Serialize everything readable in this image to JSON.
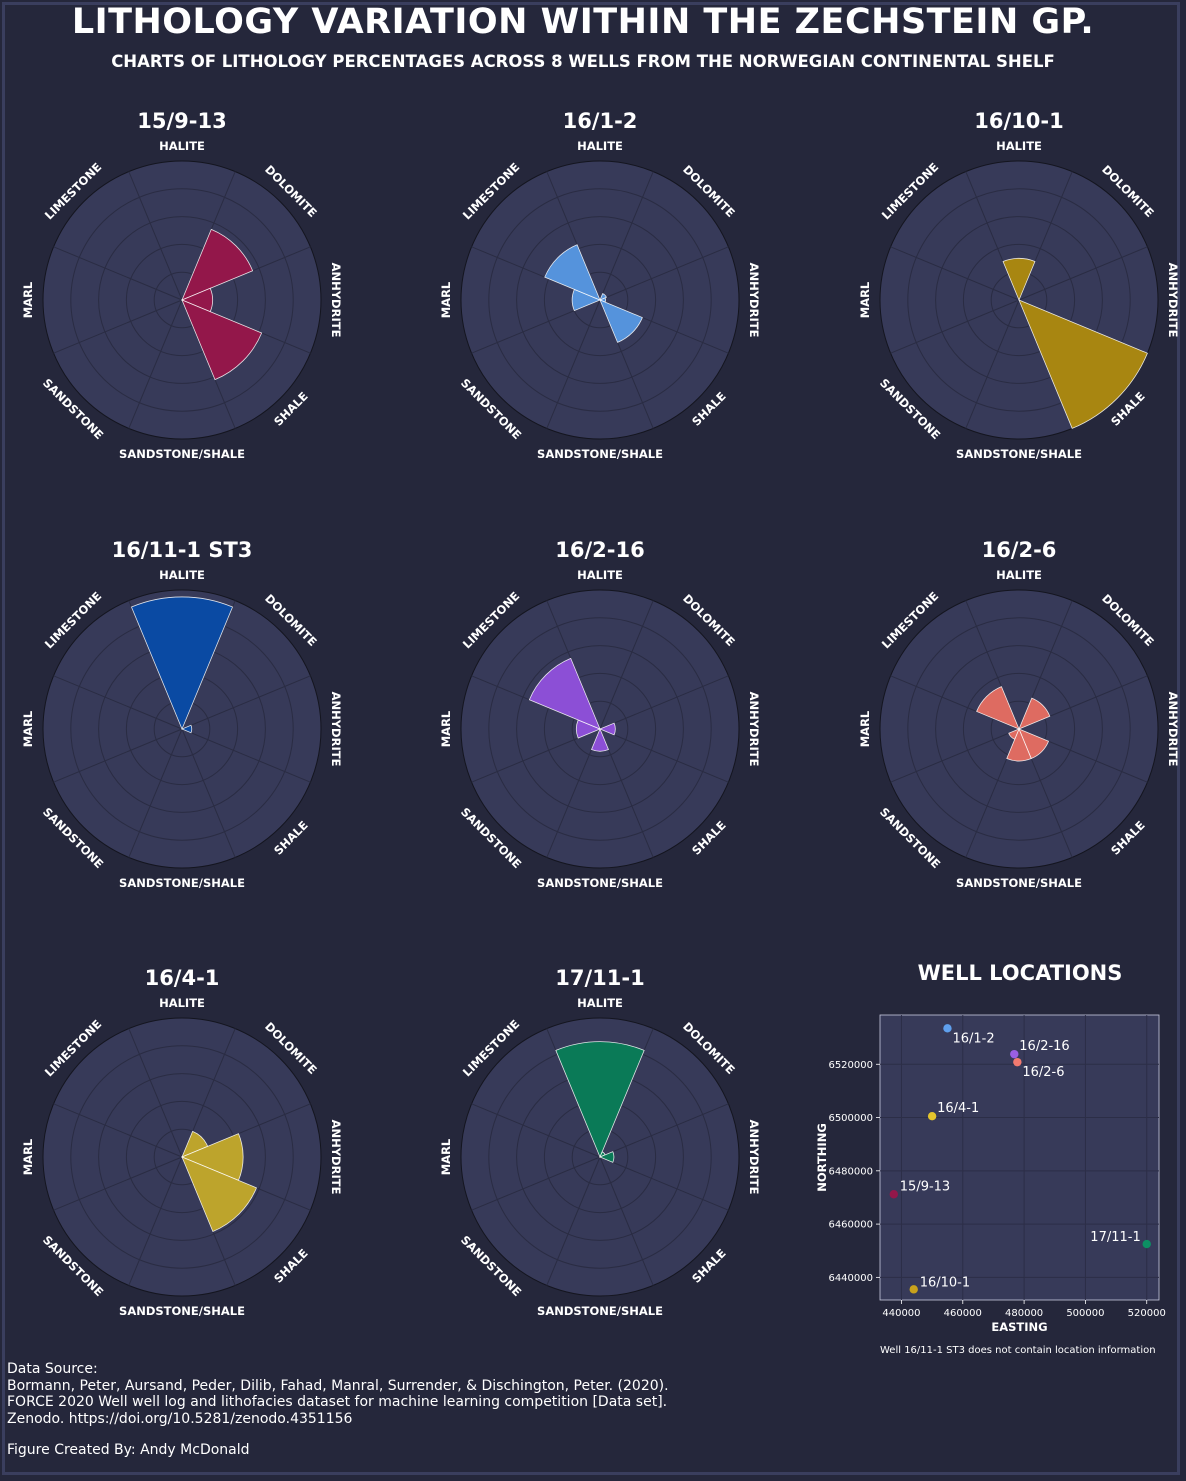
{
  "title": "LITHOLOGY VARIATION WITHIN THE ZECHSTEIN GP.",
  "subtitle": "CHARTS OF LITHOLOGY PERCENTAGES ACROSS 8 WELLS FROM THE NORWEGIAN CONTINENTAL SHELF",
  "colors": {
    "background": "#25273b",
    "panel": "#373a59",
    "grid": "#2a2c43"
  },
  "chart_data": [
    {
      "type": "polar-bar",
      "title": "15/9-13",
      "color": "#93174a",
      "categories": [
        "HALITE",
        "DOLOMITE",
        "ANHYDRITE",
        "SHALE",
        "SANDSTONE/SHALE",
        "SANDSTONE",
        "MARL",
        "LIMESTONE"
      ],
      "values": [
        0,
        55,
        22,
        62,
        0,
        0,
        0,
        0
      ],
      "rlim": [
        0,
        100
      ]
    },
    {
      "type": "polar-bar",
      "title": "16/1-2",
      "color": "#5593dc",
      "categories": [
        "HALITE",
        "DOLOMITE",
        "ANHYDRITE",
        "SHALE",
        "SANDSTONE/SHALE",
        "SANDSTONE",
        "MARL",
        "LIMESTONE"
      ],
      "values": [
        0,
        5,
        4,
        33,
        0,
        0,
        20,
        43
      ],
      "rlim": [
        0,
        100
      ]
    },
    {
      "type": "polar-bar",
      "title": "16/10-1",
      "color": "#a88611",
      "categories": [
        "HALITE",
        "DOLOMITE",
        "ANHYDRITE",
        "SHALE",
        "SANDSTONE/SHALE",
        "SANDSTONE",
        "MARL",
        "LIMESTONE"
      ],
      "values": [
        30,
        0,
        0,
        100,
        0,
        0,
        0,
        0
      ],
      "rlim": [
        0,
        100
      ]
    },
    {
      "type": "polar-bar",
      "title": "16/11-1 ST3",
      "color": "#0a4aa3",
      "categories": [
        "HALITE",
        "DOLOMITE",
        "ANHYDRITE",
        "SHALE",
        "SANDSTONE/SHALE",
        "SANDSTONE",
        "MARL",
        "LIMESTONE"
      ],
      "values": [
        95,
        0,
        7,
        0,
        0,
        0,
        0,
        0
      ],
      "rlim": [
        0,
        100
      ]
    },
    {
      "type": "polar-bar",
      "title": "16/2-16",
      "color": "#8c4fd6",
      "categories": [
        "HALITE",
        "DOLOMITE",
        "ANHYDRITE",
        "SHALE",
        "SANDSTONE/SHALE",
        "SANDSTONE",
        "MARL",
        "LIMESTONE"
      ],
      "values": [
        0,
        0,
        11,
        0,
        16,
        0,
        17,
        55
      ],
      "rlim": [
        0,
        100
      ]
    },
    {
      "type": "polar-bar",
      "title": "16/2-6",
      "color": "#de6b61",
      "categories": [
        "HALITE",
        "DOLOMITE",
        "ANHYDRITE",
        "SHALE",
        "SANDSTONE/SHALE",
        "SANDSTONE",
        "MARL",
        "LIMESTONE"
      ],
      "values": [
        0,
        24,
        0,
        23,
        23,
        8,
        0,
        33
      ],
      "rlim": [
        0,
        100
      ]
    },
    {
      "type": "polar-bar",
      "title": "16/4-1",
      "color": "#bda42c",
      "categories": [
        "HALITE",
        "DOLOMITE",
        "ANHYDRITE",
        "SHALE",
        "SANDSTONE/SHALE",
        "SANDSTONE",
        "MARL",
        "LIMESTONE"
      ],
      "values": [
        0,
        20,
        44,
        58,
        0,
        0,
        0,
        0
      ],
      "rlim": [
        0,
        100
      ]
    },
    {
      "type": "polar-bar",
      "title": "17/11-1",
      "color": "#0a7a57",
      "categories": [
        "HALITE",
        "DOLOMITE",
        "ANHYDRITE",
        "SHALE",
        "SANDSTONE/SHALE",
        "SANDSTONE",
        "MARL",
        "LIMESTONE"
      ],
      "values": [
        83,
        4,
        10,
        0,
        0,
        0,
        0,
        0
      ],
      "rlim": [
        0,
        100
      ]
    },
    {
      "type": "scatter",
      "title": "WELL LOCATIONS",
      "xlabel": "EASTING",
      "ylabel": "NORTHING",
      "xlim": [
        433000,
        524000
      ],
      "ylim": [
        6431500,
        6538500
      ],
      "xticks": [
        440000,
        460000,
        480000,
        500000,
        520000
      ],
      "yticks": [
        6440000,
        6460000,
        6480000,
        6500000,
        6520000
      ],
      "grid": true,
      "points": [
        {
          "label": "15/9-13",
          "x": 437500,
          "y": 6471200,
          "color": "#93174a"
        },
        {
          "label": "16/1-2",
          "x": 455000,
          "y": 6533500,
          "color": "#5fa0ee"
        },
        {
          "label": "16/10-1",
          "x": 444000,
          "y": 6435500,
          "color": "#c9a21c"
        },
        {
          "label": "16/2-16",
          "x": 476800,
          "y": 6523800,
          "color": "#9a5fe3"
        },
        {
          "label": "16/2-6",
          "x": 477800,
          "y": 6520800,
          "color": "#f27a70"
        },
        {
          "label": "16/4-1",
          "x": 450000,
          "y": 6500500,
          "color": "#e3c42d"
        },
        {
          "label": "17/11-1",
          "x": 520000,
          "y": 6452500,
          "color": "#0d8f63"
        }
      ]
    }
  ],
  "map_note": "Well 16/11-1 ST3 does not contain location information",
  "source_text": "Data Source:\nBormann, Peter, Aursand, Peder, Dilib, Fahad, Manral, Surrender, & Dischington, Peter. (2020).\nFORCE 2020 Well well log and lithofacies dataset for machine learning competition [Data set].\nZenodo. https://doi.org/10.5281/zenodo.4351156",
  "credit_text": "Figure Created By: Andy McDonald"
}
